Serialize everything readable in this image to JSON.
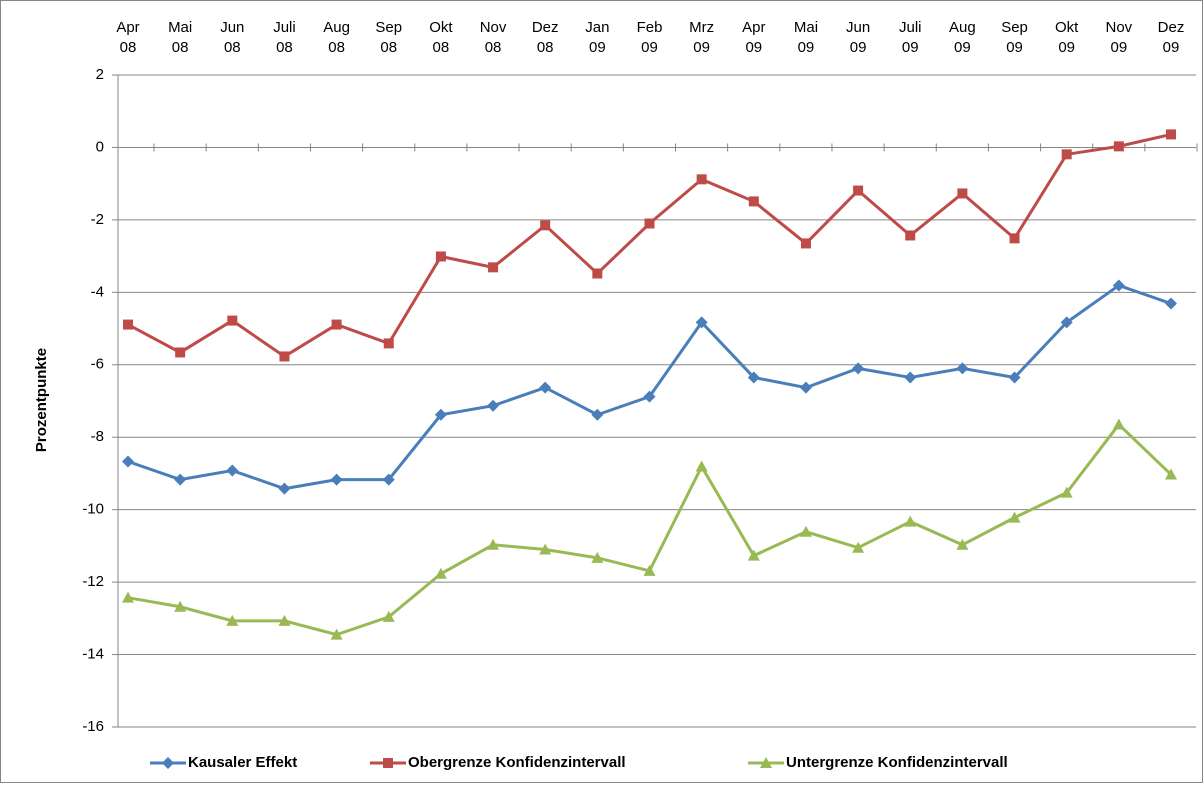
{
  "chart_data": {
    "type": "line",
    "y_label": "Prozentpunkte",
    "categories": [
      "Apr 08",
      "Mai 08",
      "Jun 08",
      "Juli 08",
      "Aug 08",
      "Sep 08",
      "Okt 08",
      "Nov 08",
      "Dez 08",
      "Jan 09",
      "Feb 09",
      "Mrz 09",
      "Apr 09",
      "Mai 09",
      "Jun 09",
      "Juli 09",
      "Aug 09",
      "Sep 09",
      "Okt 09",
      "Nov 09",
      "Dez 09"
    ],
    "series": [
      {
        "name": "Kausaler Effekt",
        "color": "#4a7ebb",
        "marker": "diamond",
        "values": [
          -8.67,
          -9.17,
          -8.92,
          -9.42,
          -9.17,
          -9.17,
          -7.38,
          -7.13,
          -6.63,
          -7.38,
          -6.88,
          -4.83,
          -6.35,
          -6.63,
          -6.1,
          -6.35,
          -6.1,
          -6.35,
          -4.83,
          -3.81,
          -4.31
        ]
      },
      {
        "name": "Obergrenze Konfidenzintervall",
        "color": "#be4b48",
        "marker": "square",
        "values": [
          -4.89,
          -5.66,
          -4.78,
          -5.77,
          -4.89,
          -5.41,
          -3.01,
          -3.31,
          -2.15,
          -3.48,
          -2.1,
          -0.88,
          -1.49,
          -2.65,
          -1.19,
          -2.43,
          -1.27,
          -2.51,
          -0.19,
          0.03,
          0.36
        ]
      },
      {
        "name": "Untergrenze Konfidenzintervall",
        "color": "#98b954",
        "marker": "triangle",
        "values": [
          -12.43,
          -12.68,
          -13.07,
          -13.07,
          -13.45,
          -12.96,
          -11.77,
          -10.97,
          -11.1,
          -11.33,
          -11.69,
          -8.81,
          -11.27,
          -10.61,
          -11.05,
          -10.33,
          -10.97,
          -10.22,
          -9.53,
          -7.65,
          -9.03
        ]
      }
    ],
    "ylim": [
      -16,
      2
    ],
    "yticks": [
      -16,
      -14,
      -12,
      -10,
      -8,
      -6,
      -4,
      -2,
      0,
      2
    ],
    "grid": true,
    "legend": "bottom"
  }
}
